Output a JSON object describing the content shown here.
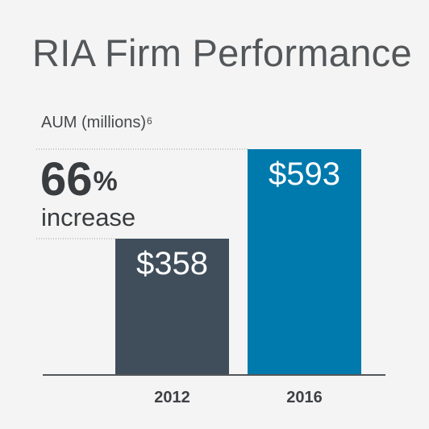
{
  "chart_data": {
    "type": "bar",
    "title": "RIA Firm Performance",
    "ylabel": "AUM (millions)",
    "ylabel_footnote": "6",
    "categories": [
      "2012",
      "2016"
    ],
    "values": [
      358,
      593
    ],
    "value_labels": [
      "$358",
      "$593"
    ],
    "ylim": [
      0,
      593
    ],
    "colors": [
      "#404e5b",
      "#0079ad"
    ],
    "grid": false,
    "annotation": {
      "value": "66",
      "unit": "%",
      "text": "increase"
    }
  }
}
